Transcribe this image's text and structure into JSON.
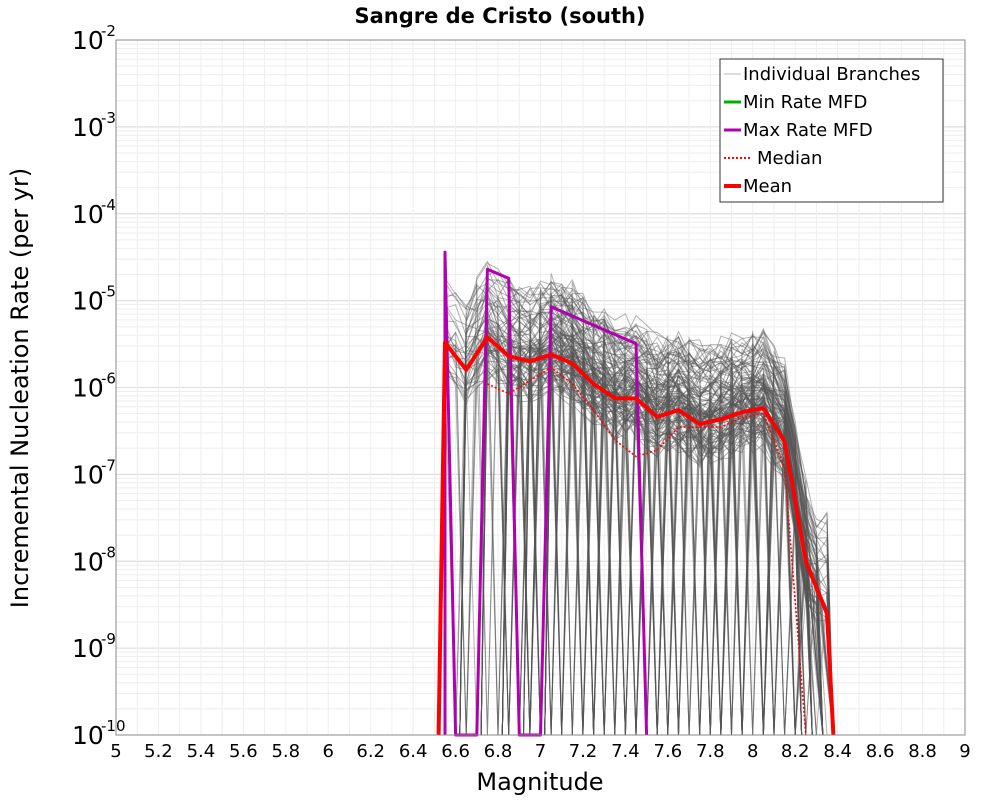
{
  "chart_data": {
    "type": "line",
    "title": "Sangre de Cristo (south)",
    "xlabel": "Magnitude",
    "ylabel": "Incremental Nucleation Rate (per yr)",
    "xlim": [
      5,
      9
    ],
    "ylim": [
      1e-10,
      0.01
    ],
    "yscale": "log",
    "grid": true,
    "legend_position": "top-right",
    "x_ticks": [
      "5",
      "5.2",
      "5.4",
      "5.6",
      "5.8",
      "6",
      "6.2",
      "6.4",
      "6.6",
      "6.8",
      "7",
      "7.2",
      "7.4",
      "7.6",
      "7.8",
      "8",
      "8.2",
      "8.4",
      "8.6",
      "8.8",
      "9"
    ],
    "y_ticks": [
      {
        "base": "10",
        "exp": "-10"
      },
      {
        "base": "10",
        "exp": "-9"
      },
      {
        "base": "10",
        "exp": "-8"
      },
      {
        "base": "10",
        "exp": "-7"
      },
      {
        "base": "10",
        "exp": "-6"
      },
      {
        "base": "10",
        "exp": "-5"
      },
      {
        "base": "10",
        "exp": "-4"
      },
      {
        "base": "10",
        "exp": "-3"
      },
      {
        "base": "10",
        "exp": "-2"
      }
    ],
    "series": [
      {
        "name": "Individual Branches",
        "color": "#555555",
        "style": "thin",
        "note_values": "many overlapping branch curves spanning roughly M6.55-8.35",
        "x_range": [
          6.55,
          8.35
        ]
      },
      {
        "name": "Min Rate MFD",
        "color": "#00b000",
        "style": "solid",
        "x": [],
        "values": []
      },
      {
        "name": "Max Rate MFD",
        "color": "#b000b0",
        "style": "solid",
        "x": [
          6.55,
          6.55,
          6.6,
          6.65,
          6.7,
          6.75,
          6.85,
          6.9,
          7.0,
          7.05,
          7.45,
          7.5
        ],
        "values": [
          1e-10,
          3.6e-05,
          1e-10,
          1e-10,
          1e-10,
          2.3e-05,
          1.8e-05,
          1e-10,
          1e-10,
          8.5e-06,
          3.2e-06,
          1e-10
        ]
      },
      {
        "name": "Median",
        "color": "#ff0000",
        "style": "dotted",
        "x": [
          6.75,
          6.85,
          6.95,
          7.05,
          7.15,
          7.25,
          7.35,
          7.45,
          7.55,
          7.65,
          7.75,
          7.85,
          7.95,
          8.05,
          8.15,
          8.25
        ],
        "values": [
          1.1e-06,
          8.5e-07,
          1.2e-06,
          1.7e-06,
          1.1e-06,
          5.5e-07,
          2.5e-07,
          1.6e-07,
          1.9e-07,
          3.5e-07,
          3.5e-07,
          3.5e-07,
          4.5e-07,
          5e-07,
          1.2e-07,
          1e-10
        ]
      },
      {
        "name": "Mean",
        "color": "#ff0000",
        "style": "thick",
        "x": [
          6.52,
          6.55,
          6.65,
          6.75,
          6.85,
          6.95,
          7.05,
          7.15,
          7.25,
          7.35,
          7.45,
          7.55,
          7.65,
          7.75,
          7.85,
          7.95,
          8.05,
          8.15,
          8.25,
          8.35,
          8.38
        ],
        "values": [
          1e-10,
          3.3e-06,
          1.6e-06,
          3.8e-06,
          2.3e-06,
          2e-06,
          2.4e-06,
          1.9e-06,
          1.1e-06,
          7.5e-07,
          7.5e-07,
          4.6e-07,
          5.5e-07,
          3.8e-07,
          4.3e-07,
          5.2e-07,
          5.8e-07,
          2.4e-07,
          1e-08,
          2.5e-09,
          1e-10
        ]
      }
    ]
  }
}
